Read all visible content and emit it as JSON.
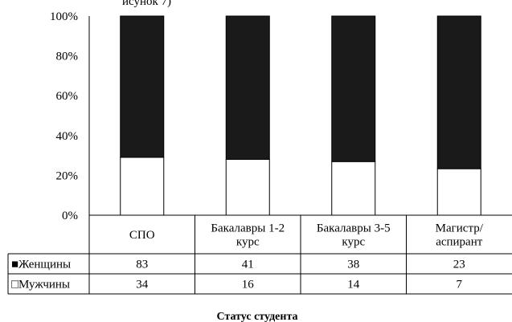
{
  "caption_fragment": "исунок 7)",
  "chart_data": {
    "type": "bar",
    "stacked": "percent",
    "categories": [
      [
        "СПО"
      ],
      [
        "Бакалавры 1-2",
        "курс"
      ],
      [
        "Бакалавры 3-5",
        "курс"
      ],
      [
        "Магистр/",
        "аспирант"
      ]
    ],
    "series": [
      {
        "name": "Женщины",
        "values": [
          83,
          41,
          38,
          23
        ],
        "color": "#1a1a1a",
        "marker": "■"
      },
      {
        "name": "Мужчины",
        "values": [
          34,
          16,
          14,
          7
        ],
        "color": "#ffffff",
        "marker": "□"
      }
    ],
    "yticks": [
      "0%",
      "20%",
      "40%",
      "60%",
      "80%",
      "100%"
    ],
    "ylim": [
      0,
      100
    ],
    "xlabel": "Статус студента",
    "ylabel": "",
    "grid": false,
    "legend": "data-table"
  }
}
